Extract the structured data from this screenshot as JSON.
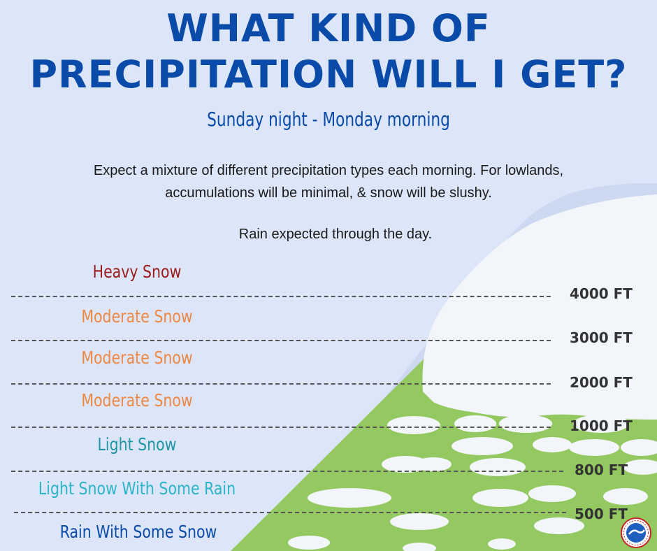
{
  "title": {
    "line1": "WHAT KIND OF",
    "line2": "PRECIPITATION WILL I GET?"
  },
  "subtitle": "Sunday night - Monday morning",
  "description": "Expect a mixture of different precipitation types each morning. For lowlands, accumulations will be minimal, & snow will be slushy.",
  "note": "Rain expected through the day.",
  "levels": [
    {
      "label": "Heavy Snow",
      "color": "#9b1b1b"
    },
    {
      "label": "Moderate Snow",
      "color": "#ee8844"
    },
    {
      "label": "Moderate Snow",
      "color": "#ee8844"
    },
    {
      "label": "Moderate Snow",
      "color": "#ee8844"
    },
    {
      "label": "Light Snow",
      "color": "#1e96a6"
    },
    {
      "label": "Light Snow With Some Rain",
      "color": "#2cb4c8"
    },
    {
      "label": "Rain With Some Snow",
      "color": "#0a4aa8"
    }
  ],
  "elevations": [
    "4000 FT",
    "3000 FT",
    "2000 FT",
    "1000 FT",
    "800 FT",
    "500 FT"
  ],
  "colors": {
    "background": "#dde6f8",
    "mountain_light": "#ccd9f2",
    "mountain_snow": "#f2f6fb",
    "grass": "#94c860",
    "title": "#0a4aa8"
  },
  "logo_icon": "nws-logo-icon"
}
